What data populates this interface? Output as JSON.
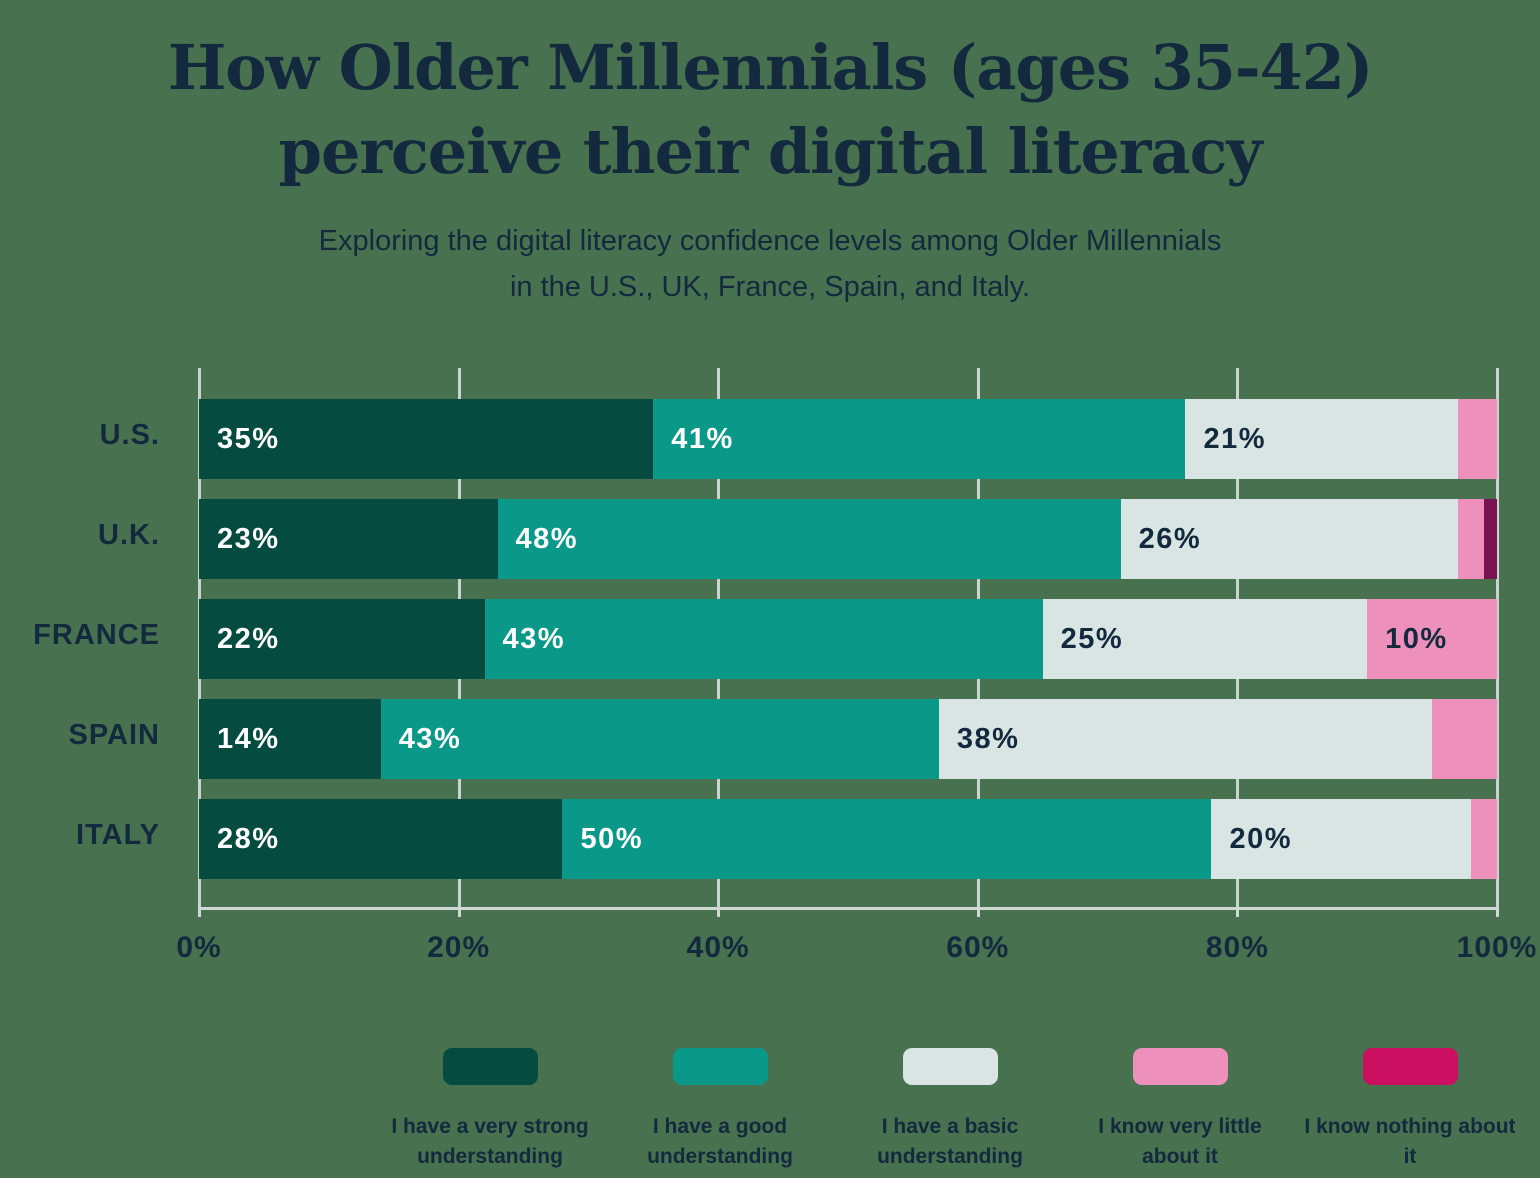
{
  "page": {
    "background_color": "#48714F",
    "text_color": "#13293D"
  },
  "header": {
    "title_line1": "How Older Millennials (ages 35-42)",
    "title_line2": "perceive their digital literacy",
    "subtitle_line1": "Exploring the digital literacy confidence levels among Older Millennials",
    "subtitle_line2": "in the U.S., UK, France, Spain, and Italy."
  },
  "chart_data": {
    "type": "bar",
    "orientation": "horizontal",
    "stacked": true,
    "title": "How Older Millennials (ages 35-42) perceive their digital literacy",
    "categories": [
      "U.S.",
      "U.K.",
      "FRANCE",
      "SPAIN",
      "ITALY"
    ],
    "series": [
      {
        "name": "I have a very strong understanding",
        "color": "#054B40",
        "bar_label_color": "#FFFFFF",
        "values": [
          35,
          23,
          22,
          14,
          28
        ]
      },
      {
        "name": "I have a good understanding",
        "color": "#0A9889",
        "bar_label_color": "#FFFFFF",
        "values": [
          41,
          48,
          43,
          43,
          50
        ]
      },
      {
        "name": "I have a basic understanding",
        "color": "#D9E5E2",
        "bar_label_color": "#13293E",
        "values": [
          21,
          26,
          25,
          38,
          20
        ]
      },
      {
        "name": "I know very little about it",
        "color": "#EE90BC",
        "bar_label_color": "#13293E",
        "values": [
          3,
          2,
          10,
          5,
          2
        ]
      },
      {
        "name": "I know nothing about it",
        "color": "#CB1062",
        "bar_color": "#7A1150",
        "bar_label_color": "#FFFFFF",
        "values": [
          0,
          1,
          0,
          0,
          0
        ]
      }
    ],
    "x_ticks": [
      "0%",
      "20%",
      "40%",
      "60%",
      "80%",
      "100%"
    ],
    "xlim": [
      0,
      100
    ],
    "value_suffix": "%",
    "min_label_value": 10,
    "grid": true,
    "gridline_color": "#C9D4CF",
    "legend_position": "bottom"
  }
}
